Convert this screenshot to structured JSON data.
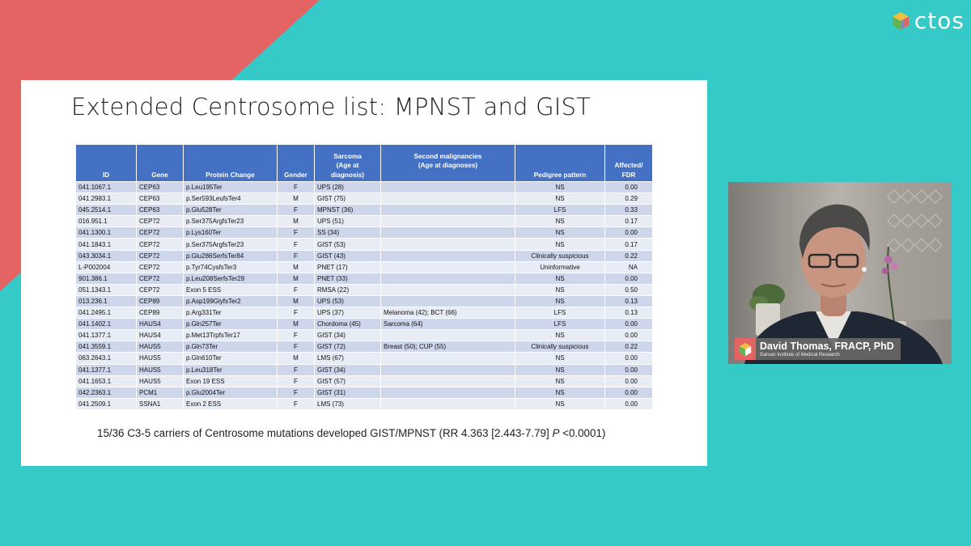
{
  "brand": {
    "name": "ctos"
  },
  "colors": {
    "background": "#35c9c7",
    "accent_red": "#e46463",
    "table_header": "#4471c4",
    "row_dark": "#cdd6ea",
    "row_light": "#e8ecf5"
  },
  "slide": {
    "title": "Extended Centrosome list: MPNST and GIST",
    "table": {
      "headers": {
        "id": "ID",
        "gene": "Gene",
        "protein_change": "Protein Change",
        "gender": "Gender",
        "sarcoma": [
          "Sarcoma",
          "(Age at",
          "diagnosis)"
        ],
        "second_malignancies": [
          "Second malignancies",
          "(Age at diagnoses)"
        ],
        "pedigree": "Pedigree pattern",
        "affected": [
          "Affected/",
          "FDR"
        ]
      },
      "rows": [
        {
          "id": "041.1067.1",
          "gene": "CEP63",
          "protein": "p.Leu195Ter",
          "gender": "F",
          "sarcoma": "UPS (28)",
          "second": "",
          "pedigree": "NS",
          "affected": "0.00"
        },
        {
          "id": "041.2983.1",
          "gene": "CEP63",
          "protein": "p.Ser593LeufsTer4",
          "gender": "M",
          "sarcoma": "GIST (75)",
          "second": "",
          "pedigree": "NS",
          "affected": "0.29"
        },
        {
          "id": "045.2514.1",
          "gene": "CEP63",
          "protein": "p.Glu528Ter",
          "gender": "F",
          "sarcoma": "MPNST (36)",
          "second": "",
          "pedigree": "LFS",
          "affected": "0.33"
        },
        {
          "id": "016.951.1",
          "gene": "CEP72",
          "protein": "p.Ser375ArgfsTer23",
          "gender": "M",
          "sarcoma": "UPS (51)",
          "second": "",
          "pedigree": "NS",
          "affected": "0.17"
        },
        {
          "id": "041.1300.1",
          "gene": "CEP72",
          "protein": "p.Lys160Ter",
          "gender": "F",
          "sarcoma": "SS (34)",
          "second": "",
          "pedigree": "NS",
          "affected": "0.00"
        },
        {
          "id": "041.1843.1",
          "gene": "CEP72",
          "protein": "p.Ser375ArgfsTer23",
          "gender": "F",
          "sarcoma": "GIST (53)",
          "second": "",
          "pedigree": "NS",
          "affected": "0.17"
        },
        {
          "id": "043.3034.1",
          "gene": "CEP72",
          "protein": "p.Glu286SerfsTer84",
          "gender": "F",
          "sarcoma": "GIST (43)",
          "second": "",
          "pedigree": "Clinically suspicious",
          "affected": "0.22"
        },
        {
          "id": "L-P002004",
          "gene": "CEP72",
          "protein": "p.Tyr74CysfsTer3",
          "gender": "M",
          "sarcoma": "PNET (17)",
          "second": "",
          "pedigree": "Uninformative",
          "affected": "NA"
        },
        {
          "id": "901.386.1",
          "gene": "CEP72",
          "protein": "p.Leu208SerfsTer29",
          "gender": "M",
          "sarcoma": "PNET (33)",
          "second": "",
          "pedigree": "NS",
          "affected": "0.00"
        },
        {
          "id": "051.1343.1",
          "gene": "CEP72",
          "protein": "Exon 5 ESS",
          "gender": "F",
          "sarcoma": "RMSA (22)",
          "second": "",
          "pedigree": "NS",
          "affected": "0.50"
        },
        {
          "id": "013.236.1",
          "gene": "CEP89",
          "protein": "p.Asp199GlyfsTer2",
          "gender": "M",
          "sarcoma": "UPS (53)",
          "second": "",
          "pedigree": "NS",
          "affected": "0.13"
        },
        {
          "id": "041.2495.1",
          "gene": "CEP89",
          "protein": "p.Arg331Ter",
          "gender": "F",
          "sarcoma": "UPS (37)",
          "second": "Melanoma (42); BCT (66)",
          "pedigree": "LFS",
          "affected": "0.13"
        },
        {
          "id": "041.1402.1",
          "gene": "HAUS4",
          "protein": "p.Gln257Ter",
          "gender": "M",
          "sarcoma": "Chordoma (45)",
          "second": "Sarcoma (64)",
          "pedigree": "LFS",
          "affected": "0.00"
        },
        {
          "id": "041.1377.1",
          "gene": "HAUS4",
          "protein": "p.Met13TrpfsTer17",
          "gender": "F",
          "sarcoma": "GIST (34)",
          "second": "",
          "pedigree": "NS",
          "affected": "0.00"
        },
        {
          "id": "041.3559.1",
          "gene": "HAUS5",
          "protein": "p.Gln73Ter",
          "gender": "F",
          "sarcoma": "GIST (72)",
          "second": "Breast (50); CUP (55)",
          "pedigree": "Clinically suspicious",
          "affected": "0.22"
        },
        {
          "id": "063.2643.1",
          "gene": "HAUS5",
          "protein": "p.Gln610Ter",
          "gender": "M",
          "sarcoma": "LMS (67)",
          "second": "",
          "pedigree": "NS",
          "affected": "0.00"
        },
        {
          "id": "041.1377.1",
          "gene": "HAUS5",
          "protein": "p.Leu318Ter",
          "gender": "F",
          "sarcoma": "GIST (34)",
          "second": "",
          "pedigree": "NS",
          "affected": "0.00"
        },
        {
          "id": "041.1653.1",
          "gene": "HAUS5",
          "protein": "Exon 19 ESS",
          "gender": "F",
          "sarcoma": "GIST (57)",
          "second": "",
          "pedigree": "NS",
          "affected": "0.00"
        },
        {
          "id": "042.2363.1",
          "gene": "PCM1",
          "protein": "p.Glu2004Ter",
          "gender": "F",
          "sarcoma": "GIST (31)",
          "second": "",
          "pedigree": "NS",
          "affected": "0.00"
        },
        {
          "id": "041.2509.1",
          "gene": "SSNA1",
          "protein": "Exon 2 ESS",
          "gender": "F",
          "sarcoma": "LMS (73)",
          "second": "",
          "pedigree": "NS",
          "affected": "0.00"
        }
      ]
    },
    "footnote": {
      "main": "15/36 C3-5 carriers of Centrosome mutations developed GIST/MPNST (RR 4.363 [2.443-7.79]",
      "p_label": "P",
      "p_value": "<0.0001)"
    }
  },
  "speaker": {
    "name": "David Thomas, FRACP, PhD",
    "affiliation": "Garvan Institute of Medical Research"
  }
}
